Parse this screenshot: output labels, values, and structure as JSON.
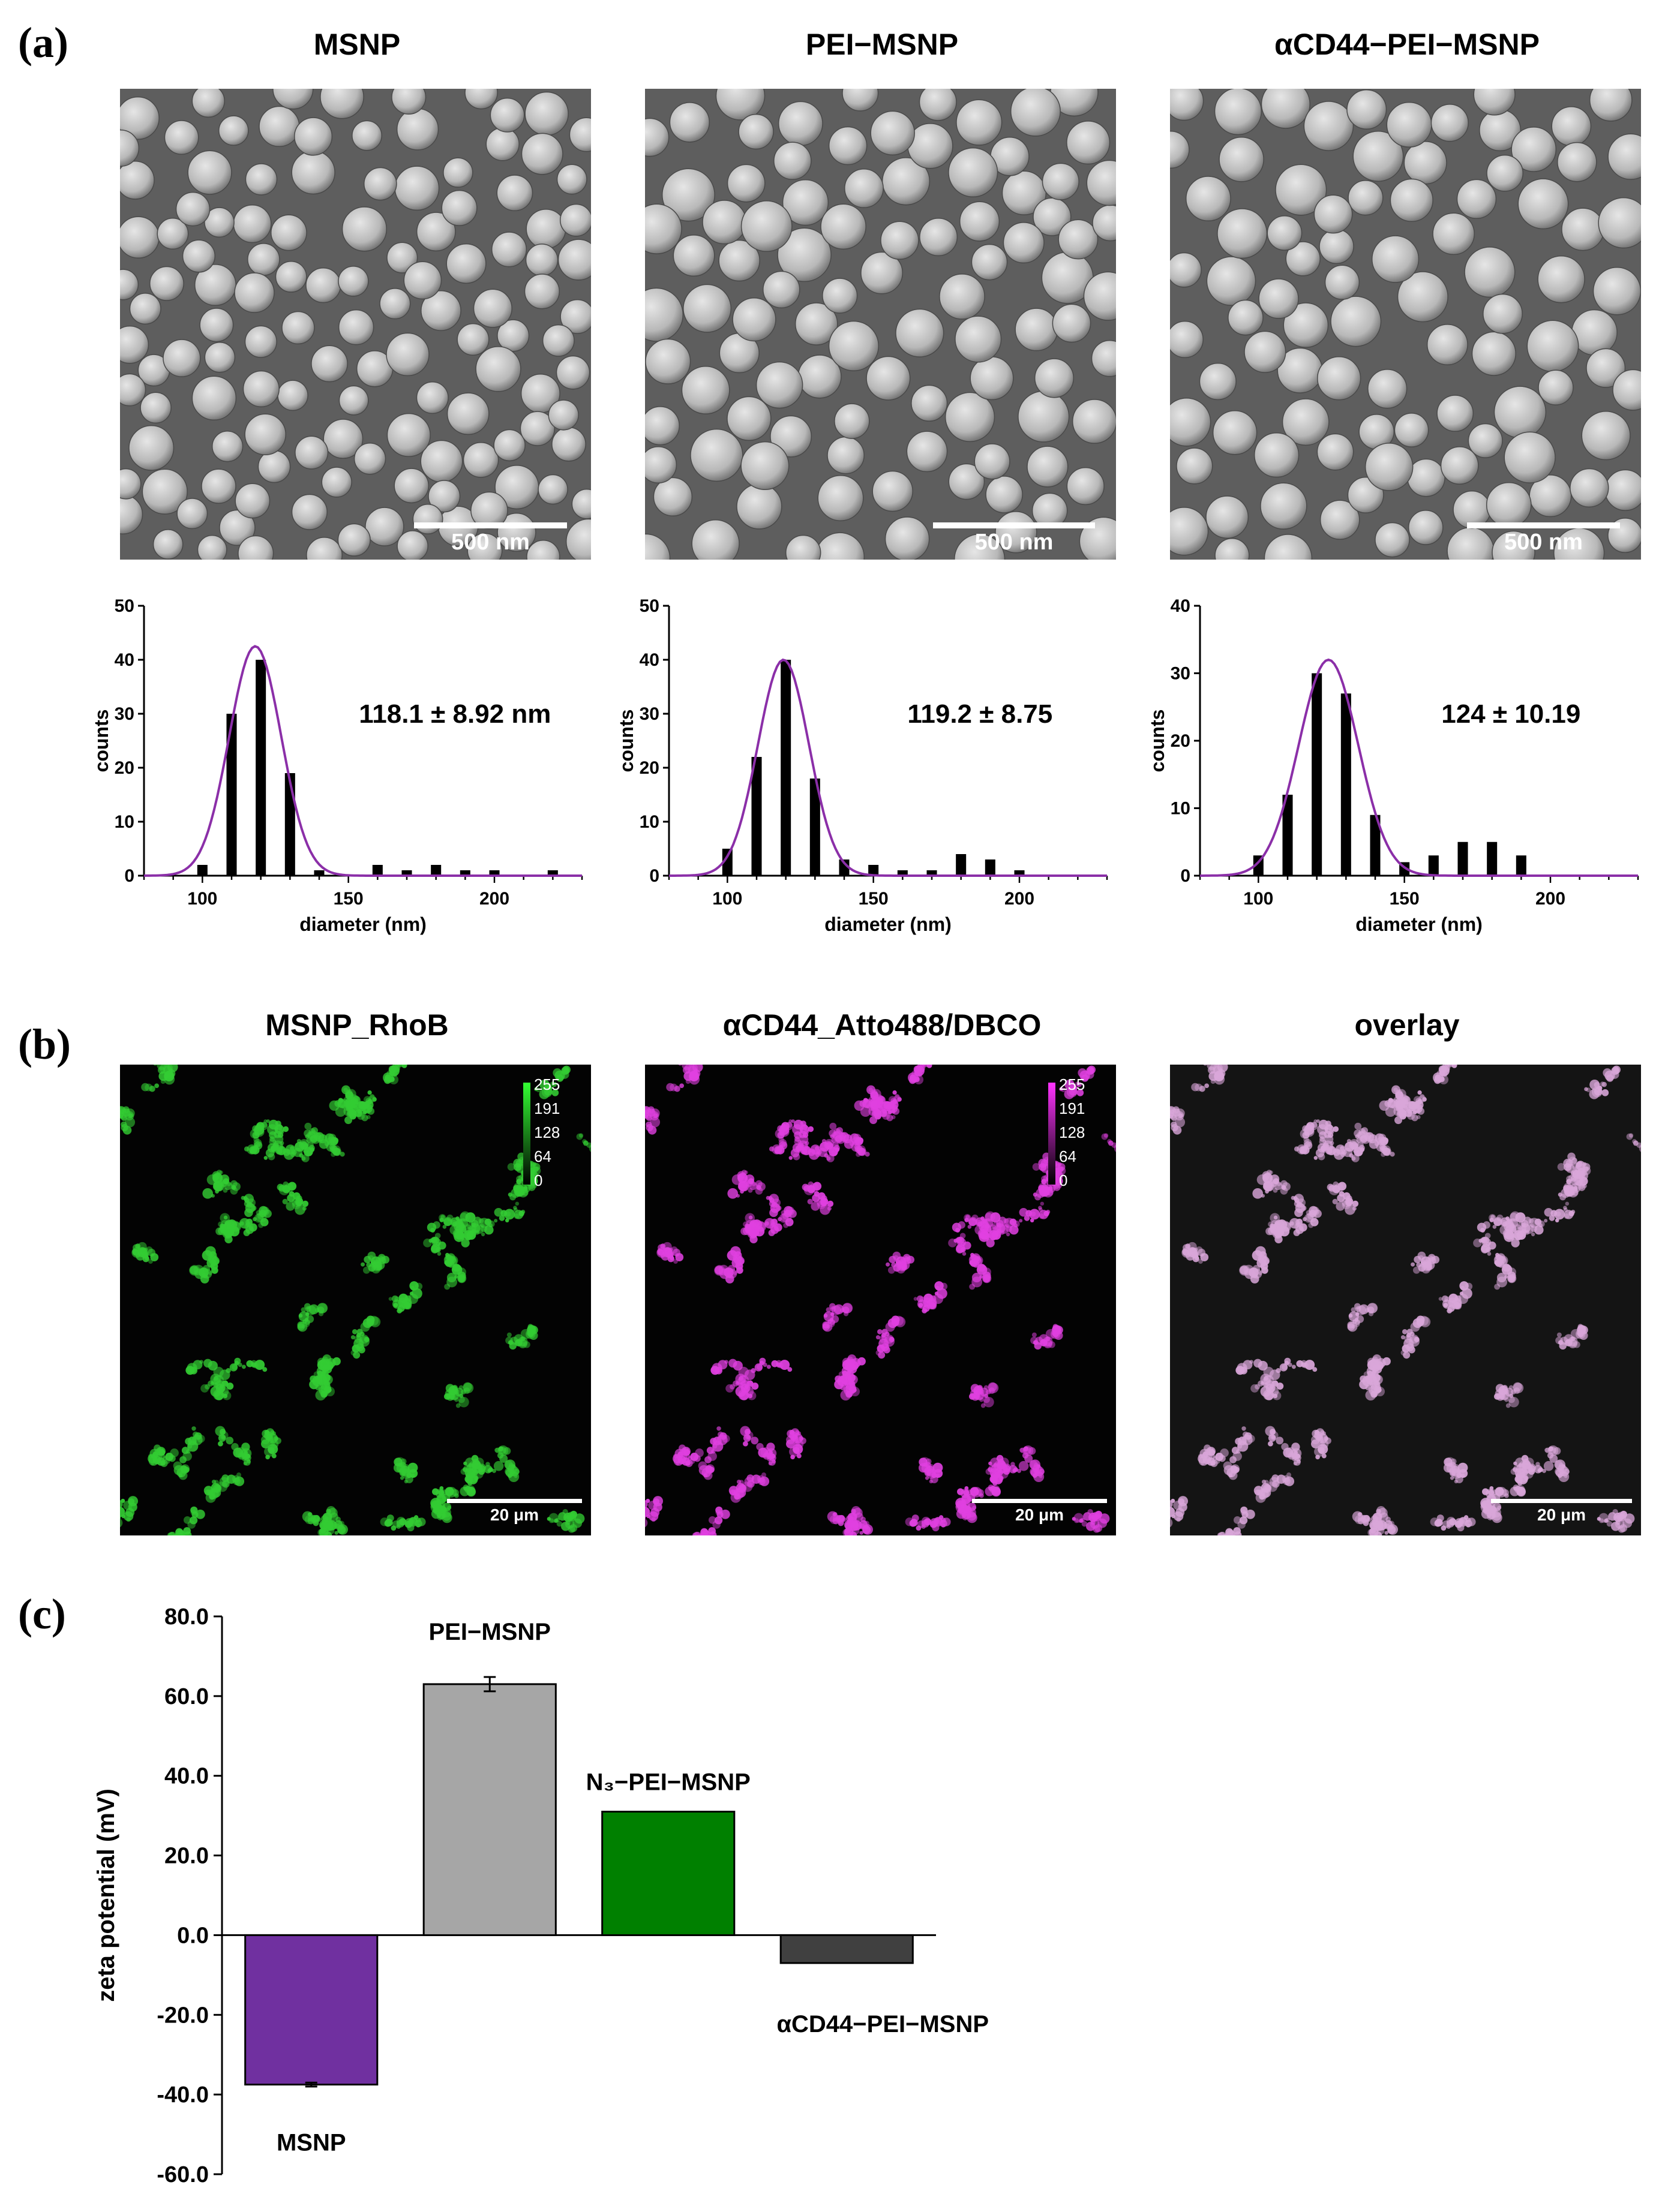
{
  "panels": {
    "a": "(a)",
    "b": "(b)",
    "c": "(c)"
  },
  "sem_images": [
    {
      "title": "MSNP",
      "scalebar": "500 nm"
    },
    {
      "title": "PEI−MSNP",
      "scalebar": "500 nm"
    },
    {
      "title": "αCD44−PEI−MSNP",
      "scalebar": "500 nm"
    }
  ],
  "fluorescence_images": [
    {
      "title": "MSNP_RhoB",
      "scalebar": "20 μm",
      "colorbar": [
        "255",
        "191",
        "128",
        "64",
        "0"
      ],
      "color": "#33cc33"
    },
    {
      "title": "αCD44_Atto488/DBCO",
      "scalebar": "20 μm",
      "colorbar": [
        "255",
        "191",
        "128",
        "64",
        "0"
      ],
      "color": "#e040e0"
    },
    {
      "title": "overlay",
      "scalebar": "20 μm",
      "color": "#d9a6d9"
    }
  ],
  "colors": {
    "fit_curve": "#8b2fa8",
    "hist_bar": "#000000"
  },
  "chart_data": [
    {
      "type": "bar",
      "name": "MSNP size distribution",
      "xlabel": "diameter (nm)",
      "ylabel": "counts",
      "xlim": [
        80,
        230
      ],
      "ylim": [
        0,
        50
      ],
      "xticks": [
        100,
        150,
        200
      ],
      "yticks": [
        0,
        10,
        20,
        30,
        40,
        50
      ],
      "x": [
        100,
        110,
        120,
        130,
        140,
        150,
        160,
        170,
        180,
        190,
        200,
        210,
        220
      ],
      "values": [
        2,
        30,
        40,
        19,
        1,
        0,
        2,
        1,
        2,
        1,
        1,
        0,
        1
      ],
      "fit": {
        "mean": 118.1,
        "sd": 8.92,
        "peak": 42.5
      },
      "annotation": "118.1 ± 8.92 nm"
    },
    {
      "type": "bar",
      "name": "PEI-MSNP size distribution",
      "xlabel": "diameter (nm)",
      "ylabel": "counts",
      "xlim": [
        80,
        230
      ],
      "ylim": [
        0,
        50
      ],
      "xticks": [
        100,
        150,
        200
      ],
      "yticks": [
        0,
        10,
        20,
        30,
        40,
        50
      ],
      "x": [
        100,
        110,
        120,
        130,
        140,
        150,
        160,
        170,
        180,
        190,
        200,
        210,
        220
      ],
      "values": [
        5,
        22,
        40,
        18,
        3,
        2,
        1,
        1,
        4,
        3,
        1,
        0,
        0
      ],
      "fit": {
        "mean": 119.2,
        "sd": 8.75,
        "peak": 40
      },
      "annotation": "119.2 ± 8.75"
    },
    {
      "type": "bar",
      "name": "aCD44-PEI-MSNP size distribution",
      "xlabel": "diameter (nm)",
      "ylabel": "counts",
      "xlim": [
        80,
        230
      ],
      "ylim": [
        0,
        40
      ],
      "xticks": [
        100,
        150,
        200
      ],
      "yticks": [
        0,
        10,
        20,
        30,
        40
      ],
      "x": [
        100,
        110,
        120,
        130,
        140,
        150,
        160,
        170,
        180,
        190,
        200,
        210,
        220
      ],
      "values": [
        3,
        12,
        30,
        27,
        9,
        2,
        3,
        5,
        5,
        3,
        0,
        0,
        0
      ],
      "fit": {
        "mean": 124,
        "sd": 10.19,
        "peak": 32
      },
      "annotation": "124 ± 10.19"
    },
    {
      "type": "bar",
      "ylabel": "zeta potential (mV)",
      "ylim": [
        -60,
        80
      ],
      "yticks": [
        "80.0",
        "60.0",
        "40.0",
        "20.0",
        "0.0",
        "-20.0",
        "-40.0",
        "-60.0"
      ],
      "categories": [
        "MSNP",
        "PEI−MSNP",
        "N₃−PEI−MSNP",
        "αCD44−PEI−MSNP"
      ],
      "values": [
        -37.5,
        63,
        31,
        -7
      ],
      "errors": [
        0.5,
        1.8,
        0,
        0
      ],
      "colors": [
        "#7030a0",
        "#a6a6a6",
        "#008000",
        "#404040"
      ]
    }
  ]
}
